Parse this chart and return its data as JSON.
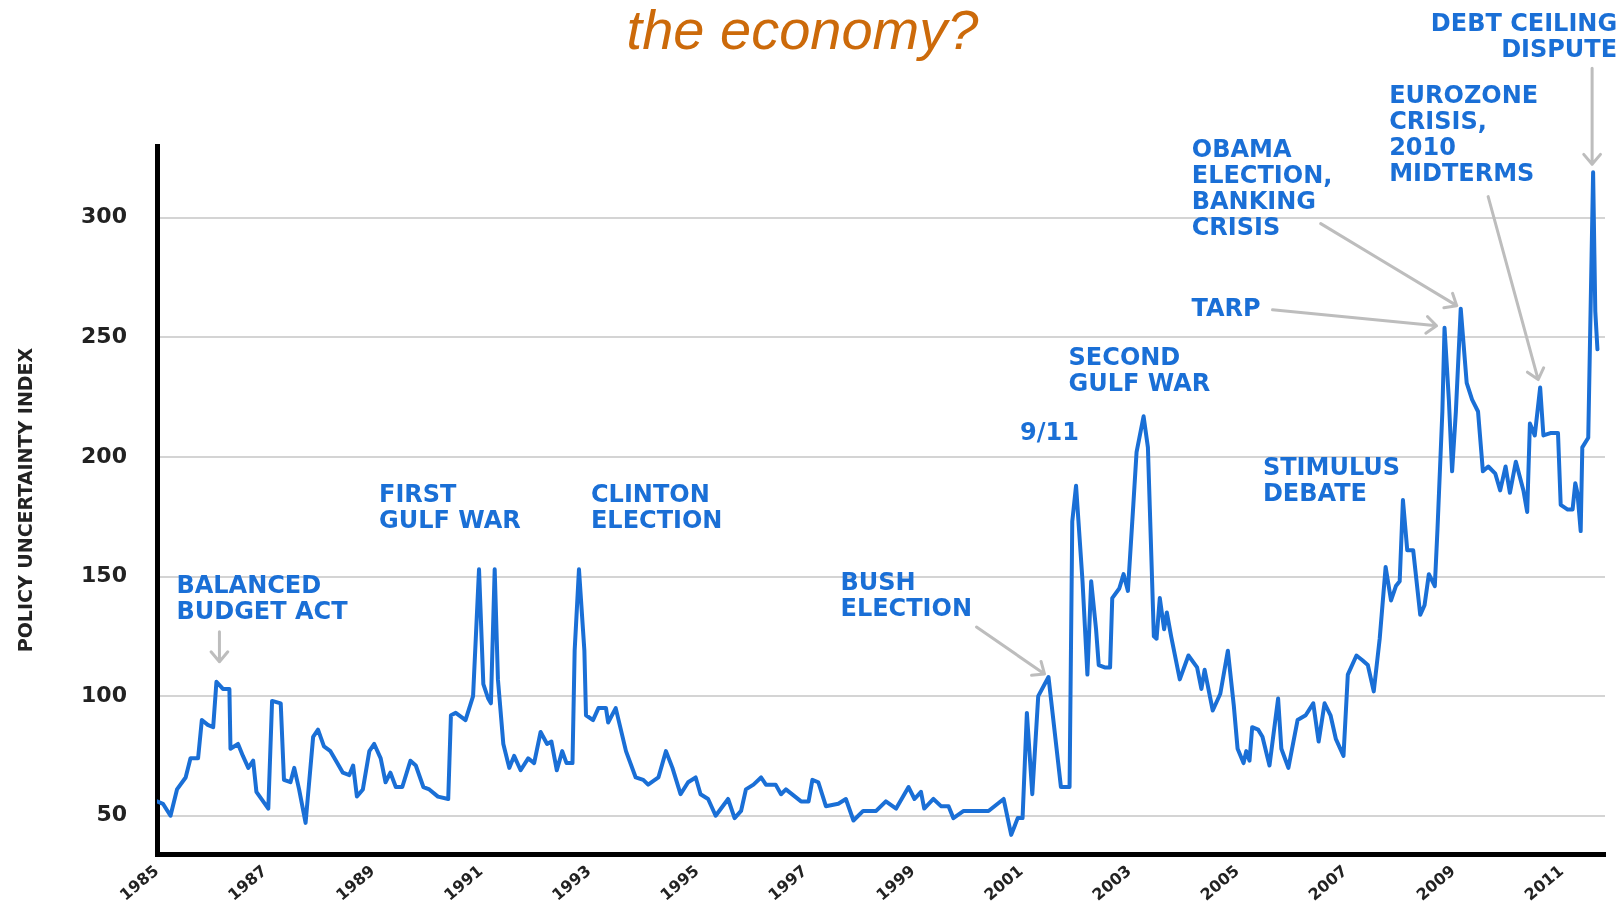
{
  "chart_data": {
    "type": "line",
    "title": "the economy?",
    "ylabel": "POLICY UNCERTAINTY INDEX",
    "x": [
      1985.0,
      1985.11,
      1985.25,
      1985.37,
      1985.53,
      1985.62,
      1985.76,
      1985.83,
      1985.94,
      1986.04,
      1986.1,
      1986.22,
      1986.34,
      1986.36,
      1986.5,
      1986.59,
      1986.69,
      1986.78,
      1986.84,
      1987.06,
      1987.13,
      1987.29,
      1987.35,
      1987.47,
      1987.54,
      1987.63,
      1987.75,
      1987.89,
      1987.98,
      1988.09,
      1988.21,
      1988.44,
      1988.56,
      1988.63,
      1988.7,
      1988.81,
      1988.93,
      1989.02,
      1989.14,
      1989.23,
      1989.32,
      1989.42,
      1989.54,
      1989.69,
      1989.79,
      1989.93,
      1990.04,
      1990.2,
      1990.39,
      1990.44,
      1990.53,
      1990.71,
      1990.85,
      1990.96,
      1991.04,
      1991.13,
      1991.18,
      1991.25,
      1991.31,
      1991.41,
      1991.52,
      1991.61,
      1991.73,
      1991.87,
      1991.98,
      1992.1,
      1992.22,
      1992.3,
      1992.4,
      1992.5,
      1992.58,
      1992.69,
      1992.73,
      1992.81,
      1992.91,
      1992.94,
      1993.07,
      1993.17,
      1993.31,
      1993.35,
      1993.49,
      1993.68,
      1993.86,
      1994.0,
      1994.09,
      1994.28,
      1994.42,
      1994.54,
      1994.69,
      1994.83,
      1994.97,
      1995.06,
      1995.2,
      1995.34,
      1995.57,
      1995.69,
      1995.81,
      1995.9,
      1996.04,
      1996.18,
      1996.27,
      1996.45,
      1996.55,
      1996.64,
      1996.92,
      1997.06,
      1997.13,
      1997.24,
      1997.38,
      1997.61,
      1997.75,
      1997.89,
      1998.07,
      1998.31,
      1998.49,
      1998.68,
      1998.91,
      1999.02,
      1999.14,
      1999.2,
      1999.37,
      1999.51,
      1999.65,
      1999.74,
      1999.93,
      2000.11,
      2000.39,
      2000.67,
      2000.81,
      2000.93,
      2001.02,
      2001.1,
      2001.2,
      2001.31,
      2001.5,
      2001.73,
      2001.89,
      2001.94,
      2002.01,
      2002.13,
      2002.22,
      2002.29,
      2002.38,
      2002.43,
      2002.54,
      2002.64,
      2002.68,
      2002.81,
      2002.89,
      2002.97,
      2003.07,
      2003.13,
      2003.26,
      2003.34,
      2003.45,
      2003.5,
      2003.56,
      2003.64,
      2003.69,
      2003.77,
      2003.93,
      2004.09,
      2004.25,
      2004.33,
      2004.39,
      2004.54,
      2004.68,
      2004.82,
      2004.93,
      2005.0,
      2005.11,
      2005.16,
      2005.22,
      2005.27,
      2005.38,
      2005.46,
      2005.59,
      2005.75,
      2005.81,
      2005.94,
      2006.11,
      2006.26,
      2006.4,
      2006.5,
      2006.61,
      2006.72,
      2006.82,
      2006.96,
      2007.04,
      2007.2,
      2007.31,
      2007.41,
      2007.52,
      2007.63,
      2007.74,
      2007.84,
      2007.93,
      2008.0,
      2008.06,
      2008.14,
      2008.25,
      2008.38,
      2008.46,
      2008.54,
      2008.65,
      2008.7,
      2008.79,
      2008.83,
      2008.91,
      2008.97,
      2009.04,
      2009.13,
      2009.24,
      2009.34,
      2009.45,
      2009.54,
      2009.64,
      2009.77,
      2009.86,
      2009.96,
      2010.04,
      2010.15,
      2010.29,
      2010.36,
      2010.41,
      2010.5,
      2010.6,
      2010.66,
      2010.79,
      2010.93,
      2010.98,
      2011.11,
      2011.2,
      2011.25,
      2011.29,
      2011.35,
      2011.38,
      2011.49,
      2011.58,
      2011.62,
      2011.66
    ],
    "series": [
      {
        "color": "#1a6fd6",
        "values": [
          56,
          55,
          50,
          61,
          66,
          74,
          74,
          90,
          88,
          87,
          106,
          103,
          103,
          78,
          80,
          75,
          70,
          73,
          60,
          53,
          98,
          97,
          65,
          64,
          70,
          61,
          47,
          83,
          86,
          79,
          77,
          68,
          67,
          71,
          58,
          61,
          77,
          80,
          74,
          64,
          68,
          62,
          62,
          73,
          71,
          62,
          61,
          58,
          57,
          92,
          93,
          90,
          100,
          153,
          105,
          99,
          97,
          153,
          107,
          80,
          70,
          75,
          69,
          74,
          72,
          85,
          80,
          81,
          69,
          77,
          72,
          72,
          119,
          153,
          119,
          92,
          90,
          95,
          95,
          89,
          95,
          77,
          66,
          65,
          63,
          66,
          77,
          70,
          59,
          64,
          66,
          59,
          57,
          50,
          57,
          49,
          52,
          61,
          63,
          66,
          63,
          63,
          59,
          61,
          56,
          56,
          65,
          64,
          54,
          55,
          57,
          48,
          52,
          52,
          56,
          53,
          62,
          57,
          60,
          53,
          57,
          54,
          54,
          49,
          52,
          52,
          52,
          57,
          42,
          49,
          49,
          93,
          59,
          100,
          108,
          62,
          62,
          173,
          188,
          148,
          109,
          148,
          128,
          113,
          112,
          112,
          141,
          145,
          151,
          144,
          180,
          202,
          217,
          204,
          125,
          124,
          141,
          128,
          135,
          125,
          107,
          117,
          112,
          103,
          111,
          94,
          101,
          119,
          96,
          78,
          72,
          77,
          73,
          87,
          86,
          83,
          71,
          99,
          78,
          70,
          90,
          92,
          97,
          81,
          97,
          92,
          82,
          75,
          109,
          117,
          115,
          113,
          102,
          124,
          154,
          140,
          146,
          148,
          182,
          161,
          161,
          134,
          138,
          151,
          146,
          170,
          219,
          254,
          224,
          194,
          219,
          262,
          231,
          224,
          219,
          194,
          196,
          193,
          186,
          196,
          185,
          198,
          186,
          177,
          214,
          209,
          229,
          209,
          210,
          210,
          180,
          178,
          178,
          189,
          185,
          169,
          204,
          208,
          319,
          261,
          245
        ]
      }
    ],
    "xlim": [
      1985,
      2011.8
    ],
    "xticks": [
      1985,
      1987,
      1989,
      1991,
      1993,
      1995,
      1997,
      1999,
      2001,
      2003,
      2005,
      2007,
      2009,
      2011
    ],
    "ylim": [
      34,
      330
    ],
    "yticks": [
      50,
      100,
      150,
      200,
      250,
      300
    ],
    "grid": "y",
    "annotations": [
      {
        "text": "BALANCED\nBUDGET ACT",
        "x": 1986.1,
        "y": 106
      },
      {
        "text": "FIRST\nGULF WAR",
        "x": 1990.96,
        "y": 153
      },
      {
        "text": "CLINTON\nELECTION",
        "x": 1992.81,
        "y": 153
      },
      {
        "text": "BUSH\nELECTION",
        "x": 2001.5,
        "y": 108
      },
      {
        "text": "9/11",
        "x": 2002.01,
        "y": 188
      },
      {
        "text": "SECOND\nGULF WAR",
        "x": 2003.26,
        "y": 217
      },
      {
        "text": "STIMULUS\nDEBATE",
        "x": 2008.06,
        "y": 182
      },
      {
        "text": "TARP",
        "x": 2008.83,
        "y": 254
      },
      {
        "text": "OBAMA\nELECTION,\nBANKING\nCRISIS",
        "x": 2009.13,
        "y": 262
      },
      {
        "text": "EUROZONE\nCRISIS,\n2010\nMIDTERMS",
        "x": 2010.6,
        "y": 229
      },
      {
        "text": "DEBT CEILING\nDISPUTE",
        "x": 2011.58,
        "y": 319
      }
    ]
  }
}
